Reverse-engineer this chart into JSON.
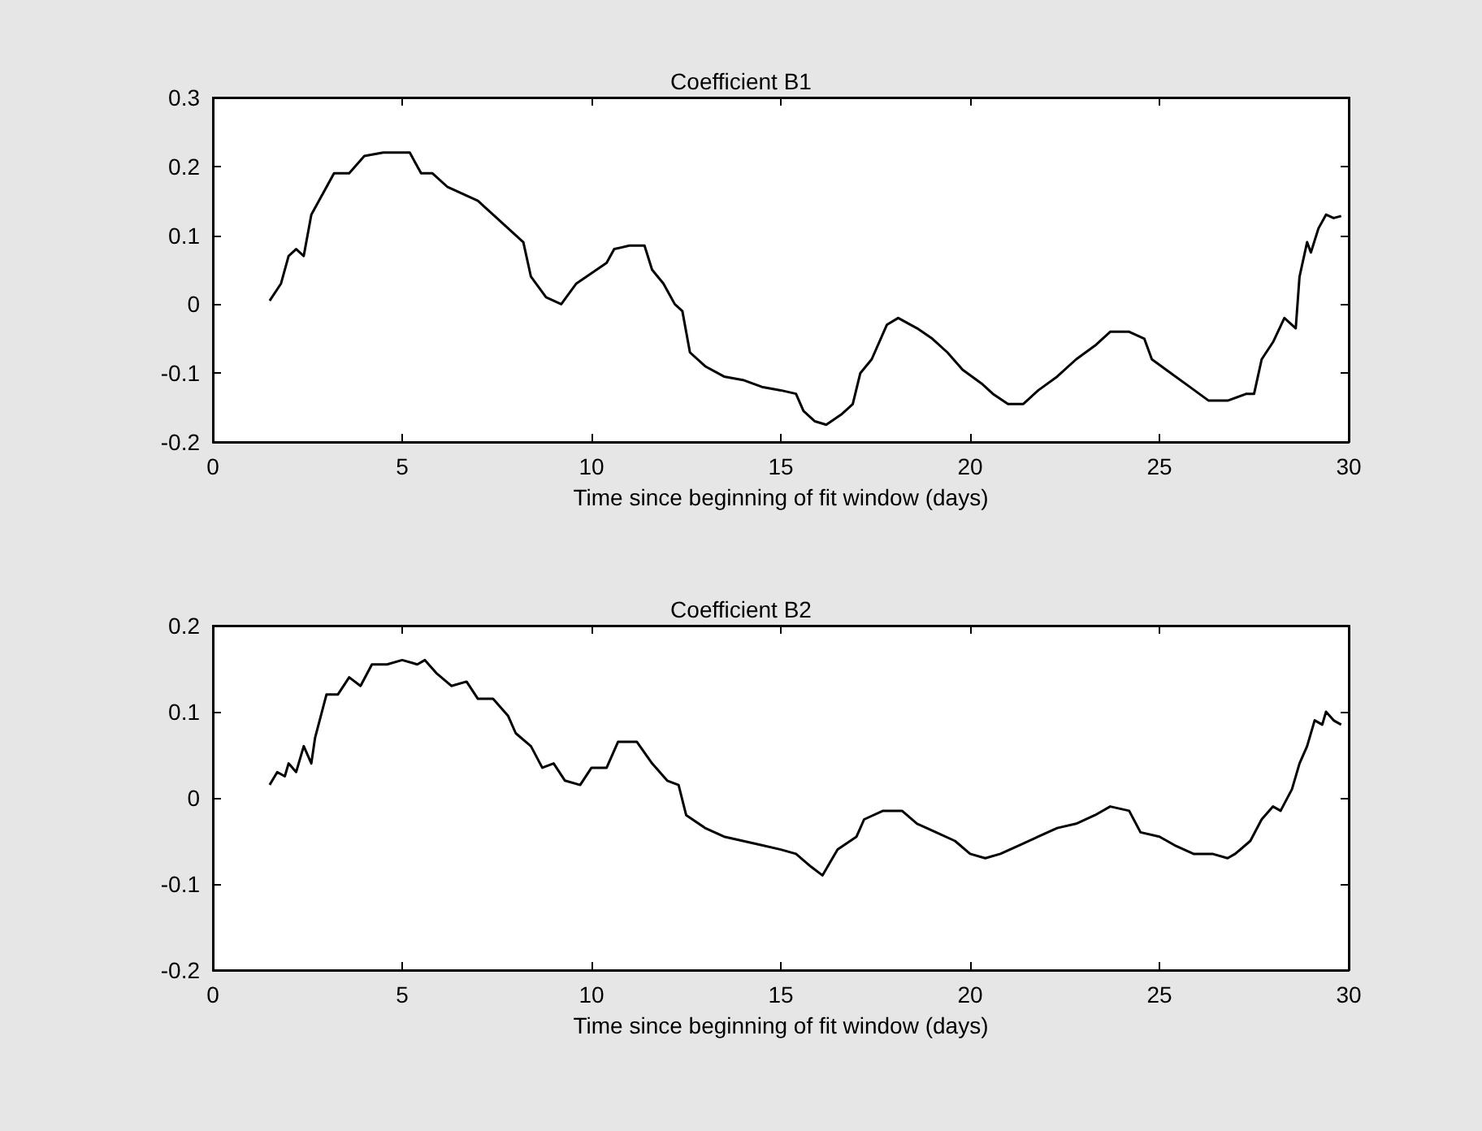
{
  "chart_data": [
    {
      "type": "line",
      "title": "Coefficient B1",
      "xlabel": "Time since beginning of fit window (days)",
      "color": "#000000",
      "xlim": [
        0,
        30
      ],
      "xticks": [
        0,
        5,
        10,
        15,
        20,
        25,
        30
      ],
      "ylim": [
        -0.2,
        0.3
      ],
      "yticks": [
        -0.2,
        -0.1,
        0,
        0.1,
        0.2,
        0.3
      ],
      "x": [
        1.5,
        1.8,
        2.0,
        2.2,
        2.4,
        2.6,
        2.9,
        3.2,
        3.6,
        4.0,
        4.5,
        5.0,
        5.2,
        5.5,
        5.8,
        6.2,
        6.6,
        7.0,
        7.4,
        7.8,
        8.2,
        8.4,
        8.8,
        9.2,
        9.6,
        10.0,
        10.4,
        10.6,
        11.0,
        11.4,
        11.6,
        11.9,
        12.2,
        12.4,
        12.6,
        13.0,
        13.5,
        14.0,
        14.5,
        15.0,
        15.4,
        15.6,
        15.9,
        16.2,
        16.6,
        16.9,
        17.1,
        17.4,
        17.8,
        18.1,
        18.6,
        19.0,
        19.4,
        19.8,
        20.3,
        20.6,
        21.0,
        21.4,
        21.8,
        22.3,
        22.8,
        23.3,
        23.7,
        24.2,
        24.6,
        24.8,
        25.3,
        25.8,
        26.3,
        26.8,
        27.3,
        27.5,
        27.7,
        28.0,
        28.3,
        28.6,
        28.7,
        28.9,
        29.0,
        29.2,
        29.4,
        29.6,
        29.8
      ],
      "values": [
        0.005,
        0.03,
        0.07,
        0.08,
        0.07,
        0.13,
        0.16,
        0.19,
        0.19,
        0.215,
        0.22,
        0.22,
        0.22,
        0.19,
        0.19,
        0.17,
        0.16,
        0.15,
        0.13,
        0.11,
        0.09,
        0.04,
        0.01,
        0.0,
        0.03,
        0.045,
        0.06,
        0.08,
        0.085,
        0.085,
        0.05,
        0.03,
        0.0,
        -0.01,
        -0.07,
        -0.09,
        -0.105,
        -0.11,
        -0.12,
        -0.125,
        -0.13,
        -0.155,
        -0.17,
        -0.175,
        -0.16,
        -0.145,
        -0.1,
        -0.08,
        -0.03,
        -0.02,
        -0.035,
        -0.05,
        -0.07,
        -0.095,
        -0.115,
        -0.13,
        -0.145,
        -0.145,
        -0.125,
        -0.105,
        -0.08,
        -0.06,
        -0.04,
        -0.04,
        -0.05,
        -0.08,
        -0.1,
        -0.12,
        -0.14,
        -0.14,
        -0.13,
        -0.13,
        -0.08,
        -0.055,
        -0.02,
        -0.035,
        0.04,
        0.09,
        0.075,
        0.11,
        0.13,
        0.125,
        0.128
      ]
    },
    {
      "type": "line",
      "title": "Coefficient B2",
      "xlabel": "Time since beginning of fit window (days)",
      "color": "#000000",
      "xlim": [
        0,
        30
      ],
      "xticks": [
        0,
        5,
        10,
        15,
        20,
        25,
        30
      ],
      "ylim": [
        -0.2,
        0.2
      ],
      "yticks": [
        -0.2,
        -0.1,
        0,
        0.1,
        0.2
      ],
      "x": [
        1.5,
        1.7,
        1.9,
        2.0,
        2.2,
        2.4,
        2.6,
        2.7,
        3.0,
        3.3,
        3.6,
        3.9,
        4.2,
        4.6,
        5.0,
        5.4,
        5.6,
        5.9,
        6.3,
        6.7,
        7.0,
        7.4,
        7.8,
        8.0,
        8.4,
        8.7,
        9.0,
        9.3,
        9.7,
        10.0,
        10.4,
        10.7,
        11.2,
        11.6,
        12.0,
        12.3,
        12.5,
        13.0,
        13.5,
        14.0,
        14.5,
        15.0,
        15.4,
        15.8,
        16.1,
        16.5,
        17.0,
        17.2,
        17.7,
        18.2,
        18.6,
        19.1,
        19.6,
        20.0,
        20.4,
        20.8,
        21.3,
        21.8,
        22.3,
        22.8,
        23.3,
        23.7,
        24.2,
        24.5,
        25.0,
        25.4,
        25.9,
        26.4,
        26.8,
        27.0,
        27.4,
        27.7,
        28.0,
        28.2,
        28.5,
        28.7,
        28.9,
        29.1,
        29.3,
        29.4,
        29.6,
        29.8
      ],
      "values": [
        0.015,
        0.03,
        0.025,
        0.04,
        0.03,
        0.06,
        0.04,
        0.07,
        0.12,
        0.12,
        0.14,
        0.13,
        0.155,
        0.155,
        0.16,
        0.155,
        0.16,
        0.145,
        0.13,
        0.135,
        0.115,
        0.115,
        0.095,
        0.075,
        0.06,
        0.035,
        0.04,
        0.02,
        0.015,
        0.035,
        0.035,
        0.065,
        0.065,
        0.04,
        0.02,
        0.015,
        -0.02,
        -0.035,
        -0.045,
        -0.05,
        -0.055,
        -0.06,
        -0.065,
        -0.08,
        -0.09,
        -0.06,
        -0.045,
        -0.025,
        -0.015,
        -0.015,
        -0.03,
        -0.04,
        -0.05,
        -0.065,
        -0.07,
        -0.065,
        -0.055,
        -0.045,
        -0.035,
        -0.03,
        -0.02,
        -0.01,
        -0.015,
        -0.04,
        -0.045,
        -0.055,
        -0.065,
        -0.065,
        -0.07,
        -0.065,
        -0.05,
        -0.025,
        -0.01,
        -0.015,
        0.01,
        0.04,
        0.06,
        0.09,
        0.085,
        0.1,
        0.09,
        0.085
      ]
    }
  ]
}
